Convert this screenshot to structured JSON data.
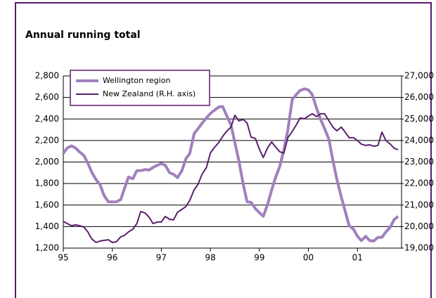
{
  "chart_data": {
    "type": "line",
    "subtitle": "Annual running total",
    "x": [
      1995.0,
      1995.08,
      1995.17,
      1995.25,
      1995.33,
      1995.42,
      1995.5,
      1995.58,
      1995.67,
      1995.75,
      1995.83,
      1995.92,
      1996.0,
      1996.08,
      1996.17,
      1996.25,
      1996.33,
      1996.42,
      1996.5,
      1996.58,
      1996.67,
      1996.75,
      1996.83,
      1996.92,
      1997.0,
      1997.08,
      1997.17,
      1997.25,
      1997.33,
      1997.42,
      1997.5,
      1997.58,
      1997.67,
      1997.75,
      1997.83,
      1997.92,
      1998.0,
      1998.08,
      1998.17,
      1998.25,
      1998.33,
      1998.42,
      1998.5,
      1998.58,
      1998.67,
      1998.75,
      1998.83,
      1998.92,
      1999.0,
      1999.08,
      1999.17,
      1999.25,
      1999.33,
      1999.42,
      1999.5,
      1999.58,
      1999.67,
      1999.75,
      1999.83,
      1999.92,
      2000.0,
      2000.08,
      2000.17,
      2000.25,
      2000.33,
      2000.42,
      2000.5,
      2000.58,
      2000.67,
      2000.75,
      2000.83,
      2000.92,
      2001.0,
      2001.08,
      2001.17,
      2001.25,
      2001.33,
      2001.42,
      2001.5,
      2001.58,
      2001.67,
      2001.75,
      2001.83
    ],
    "series": [
      {
        "name": "Wellington region",
        "color": "#a080bd",
        "values": [
          2080,
          2130,
          2150,
          2130,
          2095,
          2060,
          1990,
          1905,
          1835,
          1790,
          1690,
          1630,
          1630,
          1630,
          1650,
          1755,
          1860,
          1845,
          1920,
          1920,
          1930,
          1925,
          1950,
          1970,
          1985,
          1970,
          1900,
          1885,
          1855,
          1920,
          2030,
          2080,
          2265,
          2310,
          2360,
          2410,
          2450,
          2480,
          2510,
          2515,
          2435,
          2345,
          2180,
          2015,
          1795,
          1630,
          1625,
          1565,
          1530,
          1495,
          1610,
          1740,
          1855,
          1965,
          2115,
          2295,
          2580,
          2625,
          2665,
          2680,
          2670,
          2625,
          2495,
          2395,
          2310,
          2210,
          2015,
          1840,
          1675,
          1545,
          1410,
          1375,
          1310,
          1270,
          1310,
          1270,
          1265,
          1300,
          1300,
          1350,
          1395,
          1465,
          1495
        ]
      },
      {
        "name": "New Zealand (R.H. axis)",
        "color": "#5b1f6f",
        "axis": "y2",
        "values": [
          20240,
          20140,
          20040,
          20080,
          20040,
          19980,
          19750,
          19430,
          19260,
          19330,
          19360,
          19390,
          19260,
          19290,
          19520,
          19590,
          19750,
          19880,
          20140,
          20700,
          20630,
          20440,
          20140,
          20210,
          20210,
          20470,
          20340,
          20310,
          20670,
          20800,
          20930,
          21220,
          21710,
          21970,
          22430,
          22750,
          23410,
          23670,
          23900,
          24190,
          24420,
          24620,
          25170,
          24910,
          24980,
          24810,
          24160,
          24090,
          23600,
          23210,
          23670,
          23930,
          23700,
          23470,
          23410,
          24130,
          24420,
          24710,
          25040,
          25010,
          25140,
          25240,
          25110,
          25240,
          25240,
          24910,
          24620,
          24450,
          24620,
          24390,
          24130,
          24130,
          24000,
          23830,
          23770,
          23800,
          23730,
          23770,
          24390,
          24000,
          23830,
          23640,
          23570
        ]
      }
    ],
    "xlim": [
      1995,
      2001.9
    ],
    "xticks": [
      {
        "value": 1995,
        "label": "95"
      },
      {
        "value": 1996,
        "label": "96"
      },
      {
        "value": 1997,
        "label": "97"
      },
      {
        "value": 1998,
        "label": "98"
      },
      {
        "value": 1999,
        "label": "99"
      },
      {
        "value": 2000,
        "label": "00"
      },
      {
        "value": 2001,
        "label": "01"
      }
    ],
    "ylim": [
      1200,
      2800
    ],
    "yticks": [
      {
        "value": 1200,
        "label": "1,200"
      },
      {
        "value": 1400,
        "label": "1,400"
      },
      {
        "value": 1600,
        "label": "1,600"
      },
      {
        "value": 1800,
        "label": "1,800"
      },
      {
        "value": 2000,
        "label": "2,000"
      },
      {
        "value": 2200,
        "label": "2,200"
      },
      {
        "value": 2400,
        "label": "2,400"
      },
      {
        "value": 2600,
        "label": "2,600"
      },
      {
        "value": 2800,
        "label": "2,800"
      }
    ],
    "y2lim": [
      19000,
      27000
    ],
    "y2ticks": [
      {
        "value": 19000,
        "label": "19,000"
      },
      {
        "value": 20000,
        "label": "20,000"
      },
      {
        "value": 21000,
        "label": "21,000"
      },
      {
        "value": 22000,
        "label": "22,000"
      },
      {
        "value": 23000,
        "label": "23,000"
      },
      {
        "value": 24000,
        "label": "24,000"
      },
      {
        "value": 25000,
        "label": "25,000"
      },
      {
        "value": 26000,
        "label": "26,000"
      },
      {
        "value": 27000,
        "label": "27,000"
      }
    ],
    "grid": true,
    "legend": "top-left"
  }
}
